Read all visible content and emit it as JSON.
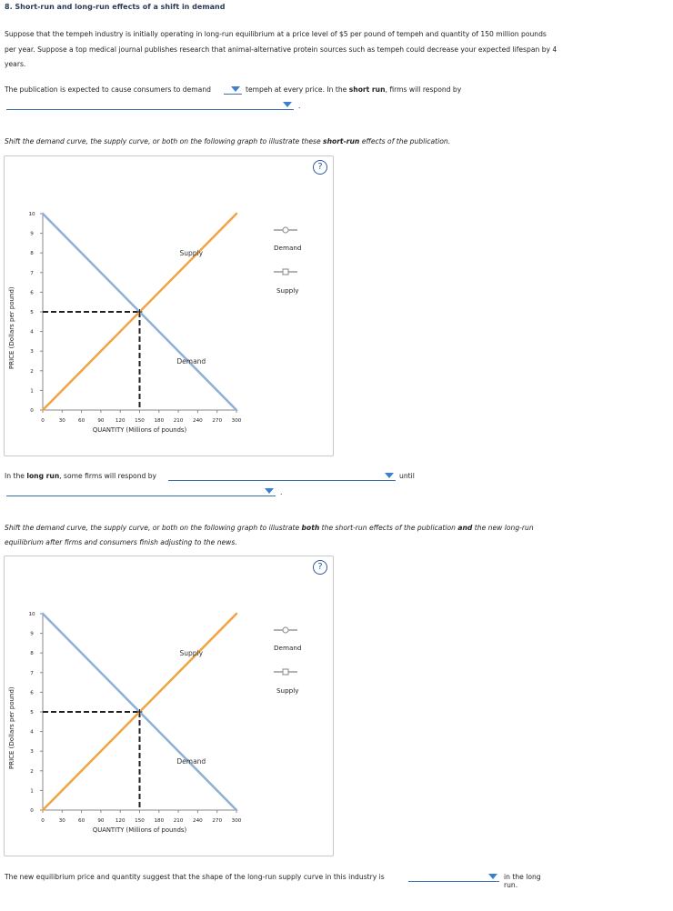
{
  "title": "8. Short-run and long-run effects of a shift in demand",
  "intro": "Suppose that the tempeh industry is initially operating in long-run equilibrium at a price level of $5 per pound of tempeh and quantity of 150 million pounds per year. Suppose a top medical journal publishes research that animal-alternative protein sources such as tempeh could decrease your expected lifespan by 4 years.",
  "q1": {
    "prefix": "The publication is expected to cause consumers to demand",
    "middle_a": "tempeh at every price. In the",
    "bold": "short run",
    "middle_b": ", firms will respond by",
    "end": "."
  },
  "instr1": {
    "a": "Shift the demand curve, the supply curve, or both on the following graph to illustrate these",
    "bold": "short-run",
    "b": "effects of the publication."
  },
  "q2": {
    "a": "In the",
    "bold": "long run",
    "b": ", some firms will respond by",
    "until": "until",
    "end": "."
  },
  "instr2": {
    "a": "Shift the demand curve, the supply curve, or both on the following graph to illustrate",
    "bold1": "both",
    "b": "the short-run effects of the publication",
    "bold2": "and",
    "c": "the new long-run equilibrium after firms and consumers finish adjusting to the news."
  },
  "q3": {
    "a": "The new equilibrium price and quantity suggest that the shape of the long-run supply curve in this industry is",
    "b": "in the long run."
  },
  "help_symbol": "?",
  "graph": {
    "ylabel": "PRICE (Dollars per pound)",
    "xlabel": "QUANTITY (Millions of pounds)",
    "supply_label": "Supply",
    "demand_label": "Demand",
    "legend_demand": "Demand",
    "legend_supply": "Supply"
  },
  "colors": {
    "supply": "#f0a443",
    "demand": "#8fb0d6",
    "dashed": "#222222",
    "link": "#3b6fb0"
  },
  "chart_data": [
    {
      "type": "line",
      "xlabel": "QUANTITY (Millions of pounds)",
      "ylabel": "PRICE (Dollars per pound)",
      "xlim": [
        0,
        300
      ],
      "ylim": [
        0,
        10
      ],
      "xticks": [
        0,
        30,
        60,
        90,
        120,
        150,
        180,
        210,
        240,
        270,
        300
      ],
      "yticks": [
        0,
        1,
        2,
        3,
        4,
        5,
        6,
        7,
        8,
        9,
        10
      ],
      "series": [
        {
          "name": "Supply",
          "x": [
            0,
            300
          ],
          "y": [
            0,
            10
          ]
        },
        {
          "name": "Demand",
          "x": [
            0,
            300
          ],
          "y": [
            10,
            0
          ]
        }
      ],
      "equilibrium": {
        "x": 150,
        "y": 5
      }
    },
    {
      "type": "line",
      "xlabel": "QUANTITY (Millions of pounds)",
      "ylabel": "PRICE (Dollars per pound)",
      "xlim": [
        0,
        300
      ],
      "ylim": [
        0,
        10
      ],
      "xticks": [
        0,
        30,
        60,
        90,
        120,
        150,
        180,
        210,
        240,
        270,
        300
      ],
      "yticks": [
        0,
        1,
        2,
        3,
        4,
        5,
        6,
        7,
        8,
        9,
        10
      ],
      "series": [
        {
          "name": "Supply",
          "x": [
            0,
            300
          ],
          "y": [
            0,
            10
          ]
        },
        {
          "name": "Demand",
          "x": [
            0,
            300
          ],
          "y": [
            10,
            0
          ]
        }
      ],
      "equilibrium": {
        "x": 150,
        "y": 5
      }
    }
  ]
}
